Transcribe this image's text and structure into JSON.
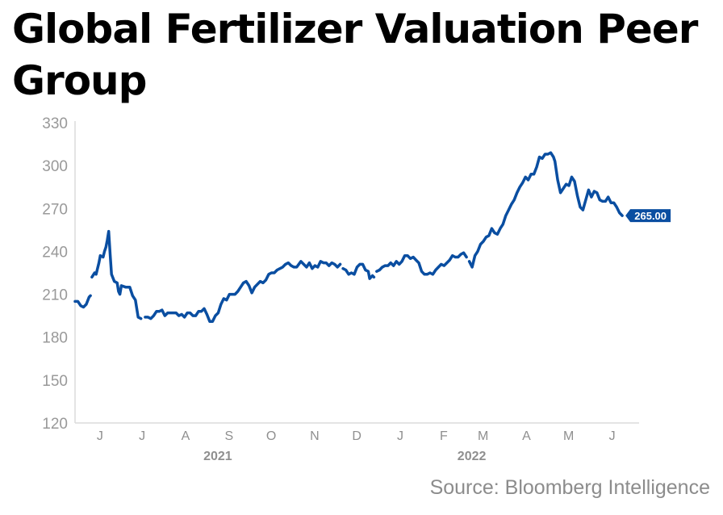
{
  "chart_data": {
    "type": "line",
    "title": "Global Fertilizer Valuation Peer Group",
    "source": "Source: Bloomberg Intelligence",
    "ylim": [
      120,
      330
    ],
    "yticks": [
      120,
      150,
      180,
      210,
      240,
      270,
      300,
      330
    ],
    "xlim": [
      "2021-05-24",
      "2022-06-30"
    ],
    "month_ticks": [
      {
        "label": "J",
        "date": "2021-06-01"
      },
      {
        "label": "J",
        "date": "2021-07-01"
      },
      {
        "label": "A",
        "date": "2021-08-01"
      },
      {
        "label": "S",
        "date": "2021-09-01"
      },
      {
        "label": "O",
        "date": "2021-10-01"
      },
      {
        "label": "N",
        "date": "2021-11-01"
      },
      {
        "label": "D",
        "date": "2021-12-01"
      },
      {
        "label": "J",
        "date": "2022-01-01"
      },
      {
        "label": "F",
        "date": "2022-02-01"
      },
      {
        "label": "M",
        "date": "2022-03-01"
      },
      {
        "label": "A",
        "date": "2022-04-01"
      },
      {
        "label": "M",
        "date": "2022-05-01"
      },
      {
        "label": "J",
        "date": "2022-06-01"
      }
    ],
    "year_ticks": [
      {
        "label": "2021",
        "date": "2021-09-01"
      },
      {
        "label": "2022",
        "date": "2022-03-01"
      }
    ],
    "grid": false,
    "line_color": "#0a4ea1",
    "last_value_label": "265.00",
    "series": [
      {
        "segments": [
          [
            [
              "2021-05-24",
              205
            ],
            [
              "2021-05-26",
              205
            ],
            [
              "2021-05-28",
              202
            ],
            [
              "2021-05-30",
              201
            ],
            [
              "2021-06-01",
              203
            ],
            [
              "2021-06-03",
              208
            ],
            [
              "2021-06-04",
              209
            ]
          ],
          [
            [
              "2021-06-05",
              222
            ],
            [
              "2021-06-07",
              225
            ],
            [
              "2021-06-08",
              224
            ],
            [
              "2021-06-10",
              232
            ],
            [
              "2021-06-11",
              237
            ],
            [
              "2021-06-13",
              236
            ],
            [
              "2021-06-14",
              240
            ],
            [
              "2021-06-15",
              243
            ],
            [
              "2021-06-16",
              248
            ],
            [
              "2021-06-17",
              254
            ],
            [
              "2021-06-18",
              238
            ],
            [
              "2021-06-19",
              224
            ],
            [
              "2021-06-21",
              219
            ],
            [
              "2021-06-23",
              218
            ],
            [
              "2021-06-24",
              212
            ],
            [
              "2021-06-25",
              210
            ],
            [
              "2021-06-26",
              216
            ],
            [
              "2021-06-29",
              215
            ],
            [
              "2021-07-02",
              215
            ],
            [
              "2021-07-04",
              209
            ],
            [
              "2021-07-06",
              206
            ],
            [
              "2021-07-08",
              194
            ],
            [
              "2021-07-10",
              193
            ]
          ],
          [
            [
              "2021-07-13",
              194
            ],
            [
              "2021-07-15",
              194
            ],
            [
              "2021-07-17",
              193
            ],
            [
              "2021-07-19",
              195
            ],
            [
              "2021-07-21",
              198
            ],
            [
              "2021-07-23",
              198
            ],
            [
              "2021-07-25",
              199
            ],
            [
              "2021-07-27",
              195
            ],
            [
              "2021-07-29",
              197
            ],
            [
              "2021-08-01",
              197
            ],
            [
              "2021-08-04",
              197
            ],
            [
              "2021-08-06",
              195
            ],
            [
              "2021-08-08",
              196
            ],
            [
              "2021-08-10",
              194
            ],
            [
              "2021-08-12",
              197
            ],
            [
              "2021-08-14",
              197
            ],
            [
              "2021-08-16",
              195
            ],
            [
              "2021-08-18",
              195
            ],
            [
              "2021-08-20",
              198
            ],
            [
              "2021-08-22",
              198
            ],
            [
              "2021-08-24",
              200
            ],
            [
              "2021-08-26",
              196
            ],
            [
              "2021-08-28",
              191
            ],
            [
              "2021-08-30",
              191
            ],
            [
              "2021-09-01",
              195
            ],
            [
              "2021-09-03",
              197
            ],
            [
              "2021-09-05",
              203
            ],
            [
              "2021-09-07",
              207
            ],
            [
              "2021-09-09",
              206
            ],
            [
              "2021-09-11",
              210
            ],
            [
              "2021-09-13",
              210
            ],
            [
              "2021-09-15",
              210
            ],
            [
              "2021-09-17",
              212
            ],
            [
              "2021-09-19",
              215
            ],
            [
              "2021-09-21",
              218
            ],
            [
              "2021-09-23",
              219
            ],
            [
              "2021-09-25",
              216
            ],
            [
              "2021-09-27",
              211
            ],
            [
              "2021-09-29",
              215
            ],
            [
              "2021-10-01",
              217
            ],
            [
              "2021-10-03",
              219
            ],
            [
              "2021-10-05",
              218
            ],
            [
              "2021-10-07",
              220
            ],
            [
              "2021-10-09",
              224
            ],
            [
              "2021-10-11",
              225
            ],
            [
              "2021-10-13",
              225
            ],
            [
              "2021-10-15",
              227
            ],
            [
              "2021-10-17",
              228
            ],
            [
              "2021-10-19",
              229
            ],
            [
              "2021-10-21",
              231
            ],
            [
              "2021-10-23",
              232
            ],
            [
              "2021-10-25",
              230
            ],
            [
              "2021-10-27",
              229
            ],
            [
              "2021-10-29",
              229
            ],
            [
              "2021-11-01",
              233
            ],
            [
              "2021-11-03",
              231
            ],
            [
              "2021-11-05",
              229
            ],
            [
              "2021-11-07",
              232
            ],
            [
              "2021-11-09",
              228
            ],
            [
              "2021-11-11",
              230
            ],
            [
              "2021-11-13",
              229
            ],
            [
              "2021-11-15",
              233
            ],
            [
              "2021-11-17",
              232
            ],
            [
              "2021-11-19",
              232
            ],
            [
              "2021-11-21",
              230
            ],
            [
              "2021-11-23",
              232
            ],
            [
              "2021-11-25",
              231
            ],
            [
              "2021-11-27",
              229
            ],
            [
              "2021-11-29",
              231
            ]
          ],
          [
            [
              "2021-12-01",
              228
            ],
            [
              "2021-12-03",
              227
            ],
            [
              "2021-12-05",
              224
            ],
            [
              "2021-12-07",
              225
            ],
            [
              "2021-12-09",
              224
            ],
            [
              "2021-12-11",
              229
            ],
            [
              "2021-12-13",
              231
            ],
            [
              "2021-12-15",
              231
            ],
            [
              "2021-12-17",
              227
            ],
            [
              "2021-12-19",
              226
            ],
            [
              "2021-12-20",
              221
            ],
            [
              "2021-12-22",
              223
            ],
            [
              "2021-12-23",
              222
            ]
          ],
          [
            [
              "2021-12-25",
              226
            ],
            [
              "2021-12-27",
              227
            ],
            [
              "2021-12-29",
              229
            ],
            [
              "2021-12-31",
              230
            ],
            [
              "2022-01-02",
              230
            ],
            [
              "2022-01-04",
              232
            ],
            [
              "2022-01-06",
              230
            ],
            [
              "2022-01-08",
              233
            ],
            [
              "2022-01-10",
              231
            ],
            [
              "2022-01-12",
              233
            ],
            [
              "2022-01-14",
              237
            ],
            [
              "2022-01-16",
              237
            ],
            [
              "2022-01-18",
              235
            ],
            [
              "2022-01-20",
              236
            ],
            [
              "2022-01-22",
              234
            ],
            [
              "2022-01-24",
              232
            ],
            [
              "2022-01-26",
              226
            ],
            [
              "2022-01-28",
              224
            ],
            [
              "2022-01-30",
              224
            ],
            [
              "2022-02-01",
              225
            ],
            [
              "2022-02-03",
              224
            ],
            [
              "2022-02-05",
              227
            ],
            [
              "2022-02-07",
              229
            ],
            [
              "2022-02-09",
              231
            ],
            [
              "2022-02-11",
              230
            ],
            [
              "2022-02-13",
              232
            ],
            [
              "2022-02-15",
              234
            ],
            [
              "2022-02-17",
              237
            ],
            [
              "2022-02-19",
              236
            ],
            [
              "2022-02-21",
              236
            ],
            [
              "2022-02-23",
              238
            ],
            [
              "2022-02-25",
              239
            ],
            [
              "2022-02-27",
              236
            ]
          ],
          [
            [
              "2022-03-01",
              233
            ],
            [
              "2022-03-03",
              229
            ],
            [
              "2022-03-05",
              237
            ],
            [
              "2022-03-07",
              240
            ],
            [
              "2022-03-09",
              245
            ],
            [
              "2022-03-11",
              247
            ],
            [
              "2022-03-13",
              250
            ],
            [
              "2022-03-15",
              251
            ],
            [
              "2022-03-17",
              256
            ],
            [
              "2022-03-19",
              253
            ],
            [
              "2022-03-21",
              252
            ],
            [
              "2022-03-23",
              256
            ],
            [
              "2022-03-25",
              259
            ],
            [
              "2022-03-27",
              265
            ],
            [
              "2022-03-29",
              269
            ],
            [
              "2022-03-31",
              273
            ],
            [
              "2022-04-02",
              276
            ],
            [
              "2022-04-04",
              281
            ],
            [
              "2022-04-06",
              285
            ],
            [
              "2022-04-08",
              288
            ],
            [
              "2022-04-10",
              292
            ],
            [
              "2022-04-12",
              290
            ],
            [
              "2022-04-14",
              294
            ],
            [
              "2022-04-16",
              294
            ],
            [
              "2022-04-18",
              299
            ],
            [
              "2022-04-20",
              306
            ],
            [
              "2022-04-22",
              305
            ],
            [
              "2022-04-24",
              308
            ],
            [
              "2022-04-26",
              308
            ],
            [
              "2022-04-28",
              309
            ],
            [
              "2022-04-30",
              306
            ],
            [
              "2022-05-01",
              303
            ],
            [
              "2022-05-03",
              290
            ],
            [
              "2022-05-05",
              281
            ],
            [
              "2022-05-07",
              284
            ],
            [
              "2022-05-09",
              287
            ],
            [
              "2022-05-11",
              286
            ],
            [
              "2022-05-13",
              292
            ],
            [
              "2022-05-15",
              289
            ],
            [
              "2022-05-17",
              279
            ],
            [
              "2022-05-19",
              271
            ],
            [
              "2022-05-21",
              269
            ],
            [
              "2022-05-23",
              276
            ],
            [
              "2022-05-25",
              283
            ],
            [
              "2022-05-27",
              278
            ],
            [
              "2022-05-29",
              282
            ],
            [
              "2022-05-31",
              281
            ],
            [
              "2022-06-02",
              276
            ],
            [
              "2022-06-04",
              275
            ],
            [
              "2022-06-06",
              275
            ],
            [
              "2022-06-08",
              278
            ],
            [
              "2022-06-10",
              274
            ],
            [
              "2022-06-12",
              274
            ],
            [
              "2022-06-14",
              271
            ],
            [
              "2022-06-16",
              267
            ],
            [
              "2022-06-18",
              265
            ]
          ]
        ]
      }
    ]
  }
}
